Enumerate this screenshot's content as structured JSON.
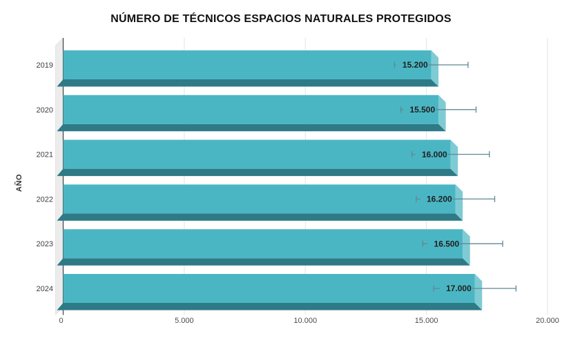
{
  "chart_data": {
    "type": "bar",
    "orientation": "horizontal",
    "style": "3d",
    "title": "NÚMERO DE TÉCNICOS ESPACIOS NATURALES PROTEGIDOS",
    "xlabel": "",
    "ylabel": "AÑO",
    "categories": [
      "2019",
      "2020",
      "2021",
      "2022",
      "2023",
      "2024"
    ],
    "values": [
      15200,
      15500,
      16000,
      16200,
      16500,
      17000
    ],
    "value_labels": [
      "15.200",
      "15.500",
      "16.000",
      "16.200",
      "16.500",
      "17.000"
    ],
    "errors": [
      1520,
      1550,
      1600,
      1620,
      1650,
      1700
    ],
    "error_note": "symmetric ±10% whiskers",
    "xlim": [
      0,
      20000
    ],
    "x_ticks": [
      {
        "value": 0,
        "label": "0"
      },
      {
        "value": 5000,
        "label": "5.000"
      },
      {
        "value": 10000,
        "label": "10.000"
      },
      {
        "value": 15000,
        "label": "15.000"
      },
      {
        "value": 20000,
        "label": "20.000"
      }
    ],
    "grid": "vertical",
    "legend": false,
    "colors": {
      "bar": "#4bb6c3",
      "bar_bottom": "#2e7a86",
      "bar_side": "#7fcbd4",
      "wall": "#ececec",
      "wall_edge": "#d9d9d9",
      "grid": "#e3e3e3",
      "axis": "#3f3f3f",
      "error_bar": "#5f8794",
      "value_label": "#1f1f1f",
      "tick_label": "#4a4a4a",
      "title": "#111111"
    }
  }
}
